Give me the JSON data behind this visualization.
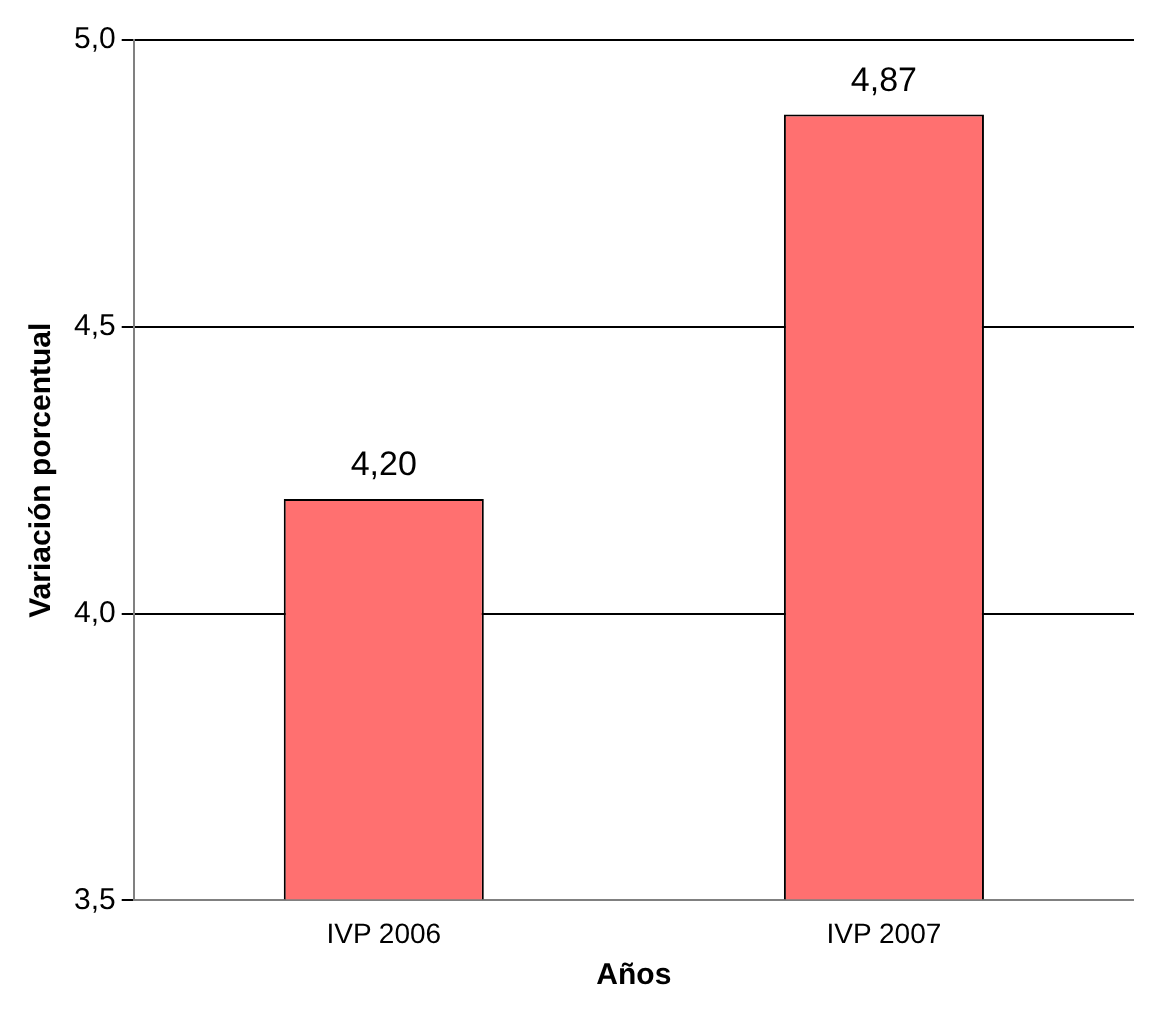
{
  "chart_data": {
    "type": "bar",
    "xlabel": "Años",
    "ylabel": "Variación porcentual",
    "categories": [
      "IVP 2006",
      "IVP 2007"
    ],
    "values": [
      4.2,
      4.87
    ],
    "value_labels": [
      "4,20",
      "4,87"
    ],
    "color": "#ff7070",
    "ylim": [
      3.5,
      5.0
    ],
    "yticks": [
      {
        "value": 3.5,
        "label": "3,5"
      },
      {
        "value": 4.0,
        "label": "4,0"
      },
      {
        "value": 4.5,
        "label": "4,5"
      },
      {
        "value": 5.0,
        "label": "5,0"
      }
    ],
    "grid": "y",
    "legend": false
  }
}
